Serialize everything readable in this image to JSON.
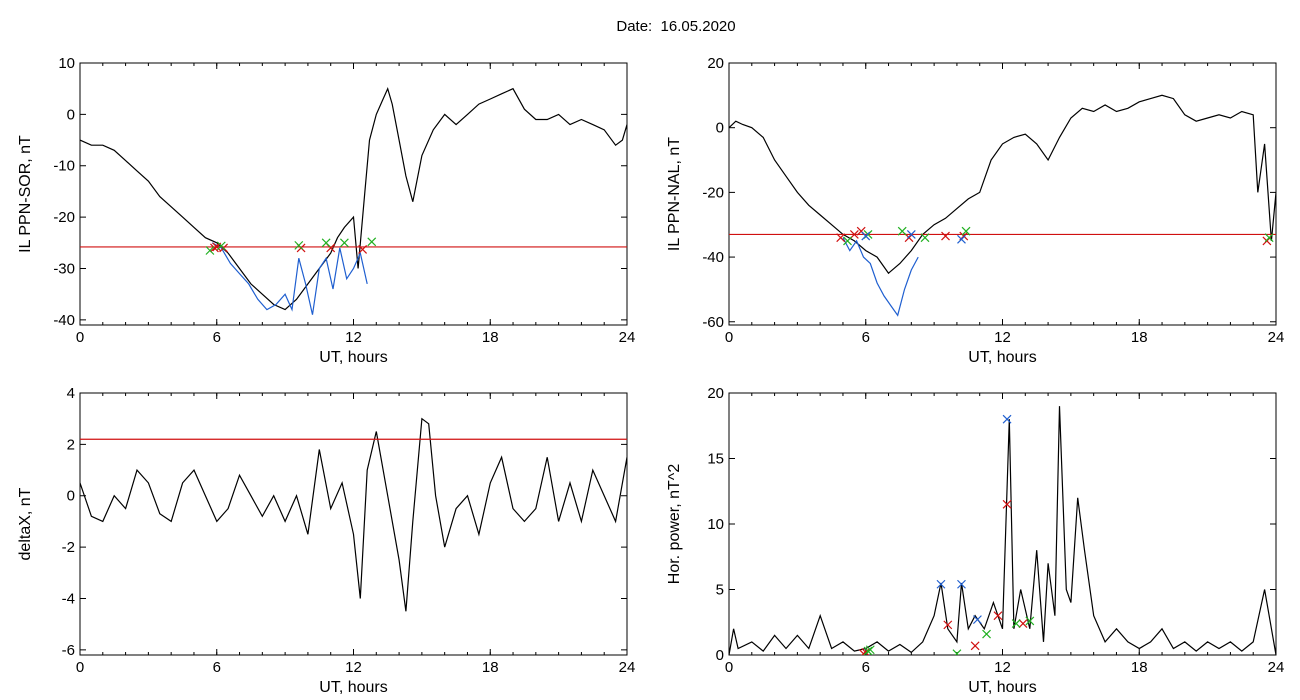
{
  "title": "Date:  16.05.2020",
  "chart_data": [
    {
      "type": "line",
      "ylabel": "IL PPN-SOR, nT",
      "xlabel": "UT, hours",
      "xlim": [
        0,
        24
      ],
      "ylim": [
        -41,
        10
      ],
      "xticks": [
        "0",
        "6",
        "12",
        "18",
        "24"
      ],
      "yticks": [
        {
          "v": 10,
          "label": "10"
        },
        {
          "v": 0,
          "label": "0"
        },
        {
          "v": -10,
          "label": "-10"
        },
        {
          "v": -20,
          "label": "-20"
        },
        {
          "v": -30,
          "label": "-30"
        },
        {
          "v": -40,
          "label": "-40"
        }
      ],
      "threshold": -25.8,
      "series": [
        {
          "color": "#000000",
          "x": [
            0,
            0.5,
            1,
            1.5,
            2,
            2.5,
            3,
            3.5,
            4,
            4.5,
            5,
            5.5,
            6,
            6.5,
            7,
            7.5,
            8,
            8.5,
            9,
            9.5,
            10,
            10.5,
            11,
            11.3,
            11.6,
            12,
            12.2,
            12.5,
            12.7,
            13,
            13.3,
            13.5,
            13.7,
            14,
            14.3,
            14.6,
            15,
            15.5,
            16,
            16.5,
            17,
            17.5,
            18,
            18.5,
            19,
            19.5,
            20,
            20.5,
            21,
            21.5,
            22,
            22.5,
            23,
            23.5,
            23.8,
            24
          ],
          "y": [
            -5,
            -6,
            -6,
            -7,
            -9,
            -11,
            -13,
            -16,
            -18,
            -20,
            -22,
            -24,
            -25,
            -27,
            -30,
            -33,
            -35,
            -37,
            -38,
            -36,
            -33,
            -30,
            -27,
            -24,
            -22,
            -20,
            -30,
            -15,
            -5,
            0,
            3,
            5,
            2,
            -5,
            -12,
            -17,
            -8,
            -3,
            0,
            -2,
            0,
            2,
            3,
            4,
            5,
            1,
            -1,
            -1,
            0,
            -2,
            -1,
            -2,
            -3,
            -6,
            -5,
            -2
          ]
        },
        {
          "color": "#1f5fd0",
          "x": [
            5.8,
            6.2,
            6.6,
            7,
            7.4,
            7.8,
            8.2,
            8.6,
            9,
            9.3,
            9.6,
            9.9,
            10.2,
            10.5,
            10.8,
            11.1,
            11.4,
            11.7,
            12,
            12.3,
            12.6
          ],
          "y": [
            -25,
            -26,
            -29,
            -31,
            -33,
            -36,
            -38,
            -37,
            -35,
            -38,
            -28,
            -33,
            -39,
            -30,
            -28,
            -34,
            -26,
            -32,
            -30,
            -27,
            -33
          ]
        }
      ],
      "markers": {
        "red": [
          [
            5.9,
            -26
          ],
          [
            6.0,
            -25.8
          ],
          [
            6.3,
            -26
          ],
          [
            9.7,
            -26
          ],
          [
            11.0,
            -26
          ],
          [
            12.4,
            -26.3
          ]
        ],
        "green": [
          [
            5.7,
            -26.5
          ],
          [
            6.2,
            -25.6
          ],
          [
            9.6,
            -25.5
          ],
          [
            10.8,
            -25
          ],
          [
            11.6,
            -25
          ],
          [
            12.8,
            -24.8
          ]
        ]
      }
    },
    {
      "type": "line",
      "ylabel": "IL PPN-NAL, nT",
      "xlabel": "UT, hours",
      "xlim": [
        0,
        24
      ],
      "ylim": [
        -61,
        20
      ],
      "xticks": [
        "0",
        "6",
        "12",
        "18",
        "24"
      ],
      "yticks": [
        {
          "v": 20,
          "label": "20"
        },
        {
          "v": 0,
          "label": "0"
        },
        {
          "v": -20,
          "label": "-20"
        },
        {
          "v": -40,
          "label": "-40"
        },
        {
          "v": -60,
          "label": "-60"
        }
      ],
      "threshold": -33,
      "series": [
        {
          "color": "#000000",
          "x": [
            0,
            0.3,
            0.6,
            1,
            1.5,
            2,
            2.5,
            3,
            3.5,
            4,
            4.5,
            5,
            5.5,
            6,
            6.5,
            7,
            7.5,
            8,
            8.5,
            9,
            9.5,
            10,
            10.5,
            11,
            11.5,
            12,
            12.5,
            13,
            13.5,
            14,
            14.5,
            15,
            15.5,
            16,
            16.5,
            17,
            17.5,
            18,
            18.5,
            19,
            19.5,
            20,
            20.5,
            21,
            21.5,
            22,
            22.5,
            23,
            23.2,
            23.5,
            23.8,
            24
          ],
          "y": [
            0,
            2,
            1,
            0,
            -3,
            -10,
            -15,
            -20,
            -24,
            -27,
            -30,
            -33,
            -35,
            -38,
            -40,
            -45,
            -42,
            -38,
            -33,
            -30,
            -28,
            -25,
            -22,
            -20,
            -10,
            -5,
            -3,
            -2,
            -5,
            -10,
            -3,
            3,
            6,
            5,
            7,
            5,
            6,
            8,
            9,
            10,
            9,
            4,
            2,
            3,
            4,
            3,
            5,
            4,
            -20,
            -5,
            -35,
            -20
          ]
        },
        {
          "color": "#1f5fd0",
          "x": [
            5.0,
            5.3,
            5.6,
            5.9,
            6.2,
            6.5,
            6.8,
            7.1,
            7.4,
            7.7,
            8.0,
            8.3
          ],
          "y": [
            -34,
            -38,
            -35,
            -40,
            -42,
            -48,
            -52,
            -55,
            -58,
            -50,
            -44,
            -40
          ]
        }
      ],
      "markers": {
        "red": [
          [
            4.9,
            -34
          ],
          [
            5.5,
            -33
          ],
          [
            5.8,
            -32
          ],
          [
            7.9,
            -34
          ],
          [
            9.5,
            -33.5
          ],
          [
            10.3,
            -33.5
          ],
          [
            23.6,
            -35
          ]
        ],
        "green": [
          [
            5.2,
            -35
          ],
          [
            6.1,
            -33
          ],
          [
            7.6,
            -32
          ],
          [
            8.6,
            -34
          ],
          [
            10.4,
            -32
          ],
          [
            23.7,
            -34
          ]
        ],
        "blue": [
          [
            6.0,
            -33.5
          ],
          [
            8.0,
            -33
          ],
          [
            10.2,
            -34.5
          ]
        ]
      }
    },
    {
      "type": "line",
      "ylabel": "deltaX, nT",
      "xlabel": "UT, hours",
      "xlim": [
        0,
        24
      ],
      "ylim": [
        -6.2,
        4
      ],
      "xticks": [
        "0",
        "6",
        "12",
        "18",
        "24"
      ],
      "yticks": [
        {
          "v": 4,
          "label": "4"
        },
        {
          "v": 2,
          "label": "2"
        },
        {
          "v": 0,
          "label": "0"
        },
        {
          "v": -2,
          "label": "-2"
        },
        {
          "v": -4,
          "label": "-4"
        },
        {
          "v": -6,
          "label": "-6"
        }
      ],
      "threshold": 2.2,
      "series": [
        {
          "color": "#000000",
          "x": [
            0,
            0.5,
            1,
            1.5,
            2,
            2.5,
            3,
            3.5,
            4,
            4.5,
            5,
            5.5,
            6,
            6.5,
            7,
            7.5,
            8,
            8.5,
            9,
            9.5,
            10,
            10.5,
            11,
            11.5,
            12,
            12.3,
            12.6,
            13,
            13.5,
            14,
            14.3,
            14.6,
            15,
            15.3,
            15.6,
            16,
            16.5,
            17,
            17.5,
            18,
            18.5,
            19,
            19.5,
            20,
            20.5,
            21,
            21.5,
            22,
            22.5,
            23,
            23.5,
            24
          ],
          "y": [
            0.5,
            -0.8,
            -1,
            0,
            -0.5,
            1,
            0.5,
            -0.7,
            -1,
            0.5,
            1,
            0,
            -1,
            -0.5,
            0.8,
            0,
            -0.8,
            0,
            -1,
            0,
            -1.5,
            1.8,
            -0.5,
            0.5,
            -1.5,
            -4,
            1,
            2.5,
            0,
            -2.5,
            -4.5,
            -1,
            3,
            2.8,
            0,
            -2,
            -0.5,
            0,
            -1.5,
            0.5,
            1.5,
            -0.5,
            -1,
            -0.5,
            1.5,
            -1,
            0.5,
            -1,
            1,
            0,
            -1,
            1.5
          ]
        }
      ],
      "markers": {}
    },
    {
      "type": "line",
      "ylabel": "Hor. power, nT^2",
      "xlabel": "UT, hours",
      "xlim": [
        0,
        24
      ],
      "ylim": [
        0,
        20
      ],
      "xticks": [
        "0",
        "6",
        "12",
        "18",
        "24"
      ],
      "yticks": [
        {
          "v": 20,
          "label": "20"
        },
        {
          "v": 15,
          "label": "15"
        },
        {
          "v": 10,
          "label": "10"
        },
        {
          "v": 5,
          "label": "5"
        },
        {
          "v": 0,
          "label": "0"
        }
      ],
      "threshold": null,
      "series": [
        {
          "color": "#000000",
          "x": [
            0,
            0.2,
            0.4,
            1,
            1.5,
            2,
            2.5,
            3,
            3.5,
            4,
            4.5,
            5,
            5.5,
            6,
            6.5,
            7,
            7.5,
            8,
            8.5,
            9,
            9.3,
            9.6,
            10,
            10.2,
            10.5,
            10.8,
            11.2,
            11.6,
            12,
            12.3,
            12.5,
            12.8,
            13.2,
            13.5,
            13.8,
            14,
            14.3,
            14.5,
            14.8,
            15,
            15.3,
            15.6,
            16,
            16.5,
            17,
            17.5,
            18,
            18.5,
            19,
            19.5,
            20,
            20.5,
            21,
            21.5,
            22,
            22.5,
            23,
            23.5,
            24
          ],
          "y": [
            0,
            2,
            0.5,
            1,
            0.3,
            1.5,
            0.5,
            1.5,
            0.5,
            3,
            0.5,
            1,
            0.3,
            0.5,
            1,
            0.3,
            0.8,
            0.2,
            1,
            3,
            5.5,
            2,
            1,
            5.5,
            2,
            3,
            2,
            4,
            2,
            18,
            2,
            5,
            2,
            8,
            1,
            7,
            3,
            19,
            5,
            4,
            12,
            8,
            3,
            1,
            2,
            1,
            0.5,
            1,
            2,
            0.5,
            1,
            0.3,
            1,
            0.5,
            1,
            0.3,
            1,
            5,
            0
          ]
        }
      ],
      "markers": {
        "blue": [
          [
            9.3,
            5.4
          ],
          [
            10.2,
            5.4
          ],
          [
            12.2,
            18
          ],
          [
            10.9,
            2.7
          ]
        ],
        "red": [
          [
            9.6,
            2.3
          ],
          [
            10.8,
            0.7
          ],
          [
            12.2,
            11.5
          ],
          [
            5.9,
            0.1
          ],
          [
            6.0,
            0.2
          ],
          [
            11.8,
            3
          ],
          [
            12.9,
            2.4
          ]
        ],
        "green": [
          [
            6.1,
            0.3
          ],
          [
            6.2,
            0.4
          ],
          [
            10,
            0.1
          ],
          [
            11.3,
            1.6
          ],
          [
            12.6,
            2.4
          ],
          [
            13.2,
            2.6
          ]
        ]
      }
    }
  ]
}
